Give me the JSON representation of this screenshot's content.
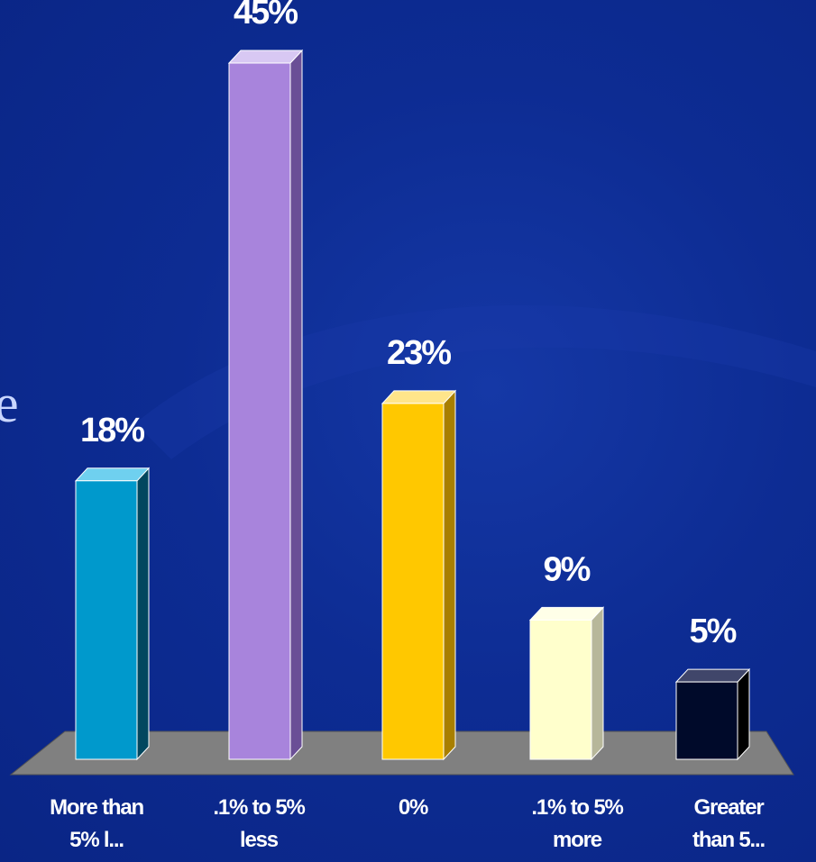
{
  "partial_text": "e",
  "chart_data": {
    "type": "bar",
    "categories": [
      [
        "More than",
        "5% l..."
      ],
      [
        ".1% to 5%",
        "less"
      ],
      [
        "0%"
      ],
      [
        ".1% to 5%",
        "more"
      ],
      [
        "Greater",
        "than 5..."
      ]
    ],
    "values": [
      18,
      45,
      23,
      9,
      5
    ],
    "value_labels": [
      "18%",
      "45%",
      "23%",
      "9%",
      "5%"
    ],
    "colors": [
      "#0099cc",
      "#a884dc",
      "#ffc800",
      "#ffffcc",
      "#000a2a"
    ],
    "side_colors": [
      "#02475f",
      "#6a4f96",
      "#a87f00",
      "#b7b79a",
      "#000000"
    ],
    "top_colors": [
      "#6fd0ef",
      "#d8c8f3",
      "#ffe58a",
      "#ffffe8",
      "#40466a"
    ],
    "floor_color": "#808080",
    "ylim": [
      0,
      45
    ],
    "grid": false
  }
}
